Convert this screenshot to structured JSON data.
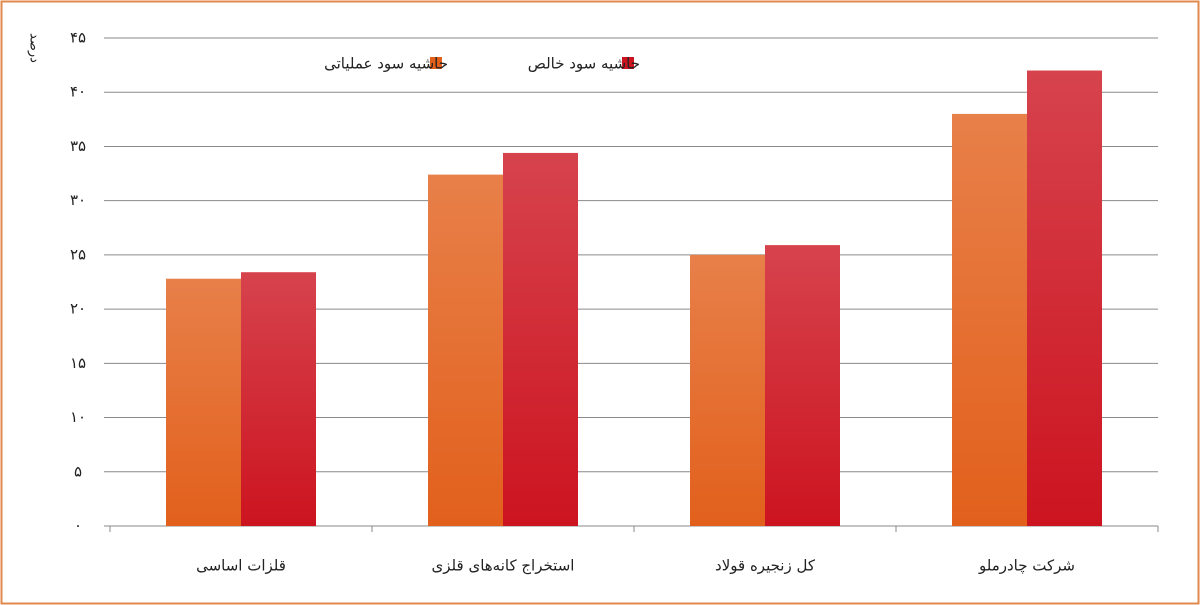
{
  "chart_data": {
    "type": "bar",
    "y_label": "درصد",
    "categories": [
      "قلزات اساسی",
      "استخراج کانه‌های قلزی",
      "کل زنجیره قولاد",
      "شرکت چادرملو"
    ],
    "series": [
      {
        "name": "حاشیه سود عملیاتی",
        "color": "#e2601c",
        "values": [
          22.8,
          32.4,
          25.0,
          38.0
        ]
      },
      {
        "name": "حاشیه سود خالص",
        "color": "#cc1420",
        "values": [
          23.4,
          34.4,
          25.9,
          42.0
        ]
      }
    ],
    "ylim": [
      0,
      45
    ],
    "yticks": [
      {
        "value": 0,
        "label": "۰"
      },
      {
        "value": 5,
        "label": "۵"
      },
      {
        "value": 10,
        "label": "۱۰"
      },
      {
        "value": 15,
        "label": "۱۵"
      },
      {
        "value": 20,
        "label": "۲۰"
      },
      {
        "value": 25,
        "label": "۲۵"
      },
      {
        "value": 30,
        "label": "۳۰"
      },
      {
        "value": 35,
        "label": "۳۵"
      },
      {
        "value": 40,
        "label": "۴۰"
      },
      {
        "value": 45,
        "label": "۴۵"
      }
    ],
    "grid": true,
    "legend": "top"
  }
}
